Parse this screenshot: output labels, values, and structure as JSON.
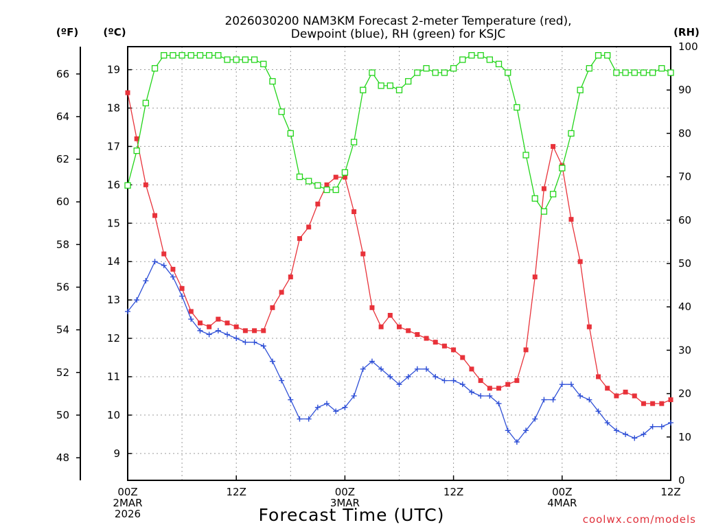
{
  "chart_data": {
    "type": "line",
    "title_line1": "2026030200 NAM3KM Forecast 2-meter Temperature (red),",
    "title_line2": "Dewpoint (blue), RH (green) for KSJC",
    "xlabel": "Forecast Time (UTC)",
    "credit": "coolwx.com/models",
    "units": {
      "fahrenheit": "(ºF)",
      "celsius": "(ºC)",
      "rh": "(RH)"
    },
    "hours_range": [
      0,
      60
    ],
    "celsius_range": [
      8.3,
      19.6
    ],
    "rh_range": [
      0,
      100
    ],
    "fahrenheit_ticks": [
      "48",
      "50",
      "52",
      "54",
      "56",
      "58",
      "60",
      "62",
      "64",
      "66"
    ],
    "celsius_ticks": [
      "9",
      "10",
      "11",
      "12",
      "13",
      "14",
      "15",
      "16",
      "17",
      "18",
      "19"
    ],
    "rh_ticks": [
      "0",
      "10",
      "20",
      "30",
      "40",
      "50",
      "60",
      "70",
      "80",
      "90",
      "100"
    ],
    "x_ticks": [
      {
        "hour": 0,
        "lines": [
          "00Z",
          "2MAR",
          "2026"
        ]
      },
      {
        "hour": 12,
        "lines": [
          "12Z"
        ]
      },
      {
        "hour": 24,
        "lines": [
          "00Z",
          "3MAR"
        ]
      },
      {
        "hour": 36,
        "lines": [
          "12Z"
        ]
      },
      {
        "hour": 48,
        "lines": [
          "00Z",
          "4MAR"
        ]
      },
      {
        "hour": 60,
        "lines": [
          "12Z"
        ]
      }
    ],
    "hours": [
      0,
      1,
      2,
      3,
      4,
      5,
      6,
      7,
      8,
      9,
      10,
      11,
      12,
      13,
      14,
      15,
      16,
      17,
      18,
      19,
      20,
      21,
      22,
      23,
      24,
      25,
      26,
      27,
      28,
      29,
      30,
      31,
      32,
      33,
      34,
      35,
      36,
      37,
      38,
      39,
      40,
      41,
      42,
      43,
      44,
      45,
      46,
      47,
      48,
      49,
      50,
      51,
      52,
      53,
      54,
      55,
      56,
      57,
      58,
      59,
      60
    ],
    "series": [
      {
        "name": "Temperature",
        "axis": "celsius",
        "color": "#e8323a",
        "marker": "filled-square",
        "values": [
          18.4,
          17.2,
          16.0,
          15.2,
          14.2,
          13.8,
          13.3,
          12.7,
          12.4,
          12.3,
          12.5,
          12.4,
          12.3,
          12.2,
          12.2,
          12.2,
          12.8,
          13.2,
          13.6,
          14.6,
          14.9,
          15.5,
          16.0,
          16.2,
          16.2,
          15.3,
          14.2,
          12.8,
          12.3,
          12.6,
          12.3,
          12.2,
          12.1,
          12.0,
          11.9,
          11.8,
          11.7,
          11.5,
          11.2,
          10.9,
          10.7,
          10.7,
          10.8,
          10.9,
          11.7,
          13.6,
          15.9,
          17.0,
          16.5,
          15.1,
          14.0,
          12.3,
          11.0,
          10.7,
          10.5,
          10.6,
          10.5,
          10.3,
          10.3,
          10.3,
          10.4
        ]
      },
      {
        "name": "Dewpoint",
        "axis": "celsius",
        "color": "#2e4fd6",
        "marker": "plus",
        "values": [
          12.7,
          13.0,
          13.5,
          14.0,
          13.9,
          13.6,
          13.1,
          12.5,
          12.2,
          12.1,
          12.2,
          12.1,
          12.0,
          11.9,
          11.9,
          11.8,
          11.4,
          10.9,
          10.4,
          9.9,
          9.9,
          10.2,
          10.3,
          10.1,
          10.2,
          10.5,
          11.2,
          11.4,
          11.2,
          11.0,
          10.8,
          11.0,
          11.2,
          11.2,
          11.0,
          10.9,
          10.9,
          10.8,
          10.6,
          10.5,
          10.5,
          10.3,
          9.6,
          9.3,
          9.6,
          9.9,
          10.4,
          10.4,
          10.8,
          10.8,
          10.5,
          10.4,
          10.1,
          9.8,
          9.6,
          9.5,
          9.4,
          9.5,
          9.7,
          9.7,
          9.8
        ]
      },
      {
        "name": "RH",
        "axis": "rh",
        "color": "#21d418",
        "marker": "open-square",
        "values": [
          68,
          76,
          87,
          95,
          98,
          98,
          98,
          98,
          98,
          98,
          98,
          97,
          97,
          97,
          97,
          96,
          92,
          85,
          80,
          70,
          69,
          68,
          67,
          67,
          71,
          78,
          90,
          94,
          91,
          91,
          90,
          92,
          94,
          95,
          94,
          94,
          95,
          97,
          98,
          98,
          97,
          96,
          94,
          86,
          75,
          65,
          62,
          66,
          72,
          80,
          90,
          95,
          98,
          98,
          94,
          94,
          94,
          94,
          94,
          95,
          94
        ]
      }
    ]
  }
}
